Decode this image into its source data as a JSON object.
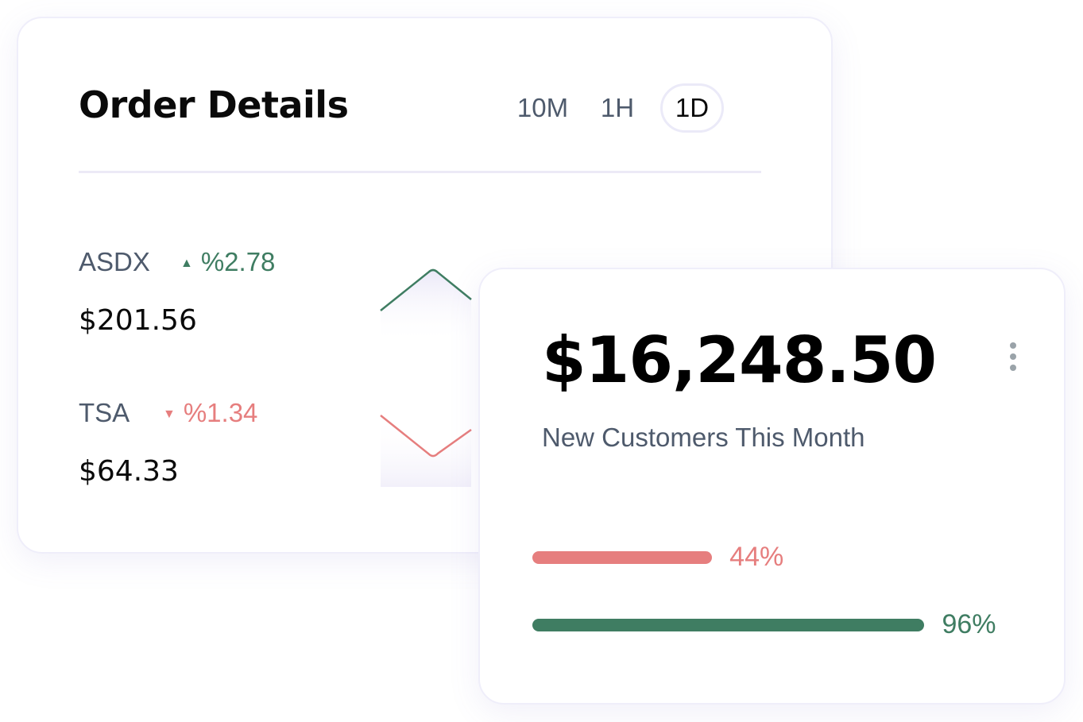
{
  "order_details": {
    "title": "Order Details",
    "tabs": [
      {
        "label": "10M",
        "active": false
      },
      {
        "label": "1H",
        "active": false
      },
      {
        "label": "1D",
        "active": true
      }
    ],
    "tickers": [
      {
        "symbol": "ASDX",
        "direction": "up",
        "change": "%2.78",
        "price": "$201.56",
        "color": "#3f7d62"
      },
      {
        "symbol": "TSA",
        "direction": "down",
        "change": "%1.34",
        "price": "$64.33",
        "color": "#e67e7e"
      }
    ]
  },
  "customers_card": {
    "amount": "$16,248.50",
    "subtitle": "New Customers This Month",
    "menu_icon": "more-vertical-icon",
    "bars": [
      {
        "value": 44,
        "label": "44%",
        "color": "#e67e7e"
      },
      {
        "value": 96,
        "label": "96%",
        "color": "#3f7d62"
      }
    ]
  }
}
